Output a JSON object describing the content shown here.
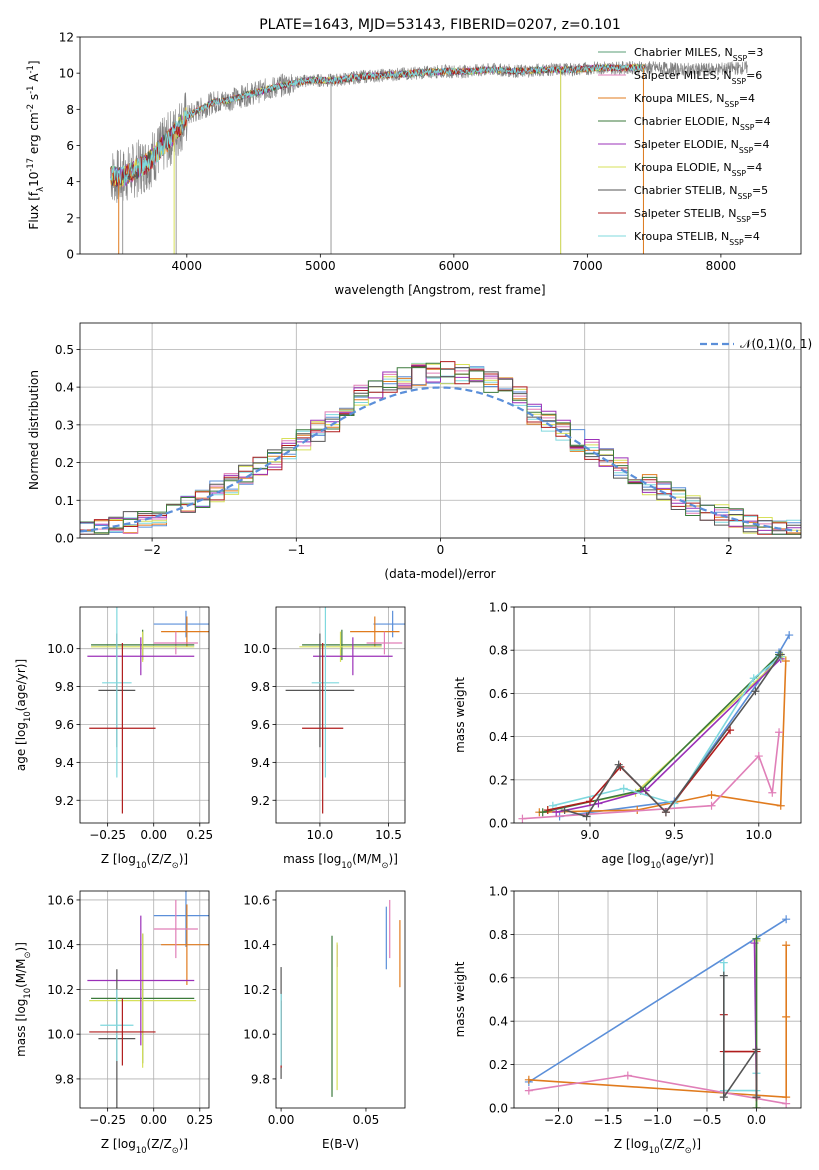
{
  "chart_data": [
    {
      "type": "line",
      "title": "PLATE=1643, MJD=53143, FIBERID=0207, z=0.101",
      "xlabel": "wavelength [Angstrom, rest frame]",
      "ylabel": "Flux [f$_\\lambda$10$^{-17}$ erg cm$^{-2}$ s$^{-1}$ A$^{-1}$]",
      "xlim": [
        3200,
        8600
      ],
      "ylim": [
        0,
        12
      ],
      "xticks": [
        "4000",
        "5000",
        "6000",
        "7000",
        "8000"
      ],
      "yticks": [
        "0",
        "2",
        "4",
        "6",
        "8",
        "10",
        "12"
      ],
      "legend_position": "lower-right",
      "observed_spectrum_color": "#808080",
      "spectrum_shape": {
        "x": [
          3430,
          3500,
          3600,
          3700,
          3800,
          3900,
          4000,
          4100,
          4200,
          4300,
          4500,
          4700,
          4900,
          5100,
          5300,
          5500,
          5700,
          5900,
          6100,
          6300,
          6500,
          6700,
          6900,
          7100,
          7300,
          7500,
          7700,
          7900,
          8200
        ],
        "y": [
          4.4,
          4.2,
          4.6,
          5.0,
          5.8,
          6.6,
          7.6,
          8.0,
          8.4,
          8.5,
          8.9,
          9.3,
          9.6,
          9.6,
          9.8,
          9.9,
          10.0,
          10.1,
          10.1,
          10.2,
          10.1,
          10.2,
          10.2,
          10.3,
          10.3,
          10.3,
          10.2,
          10.2,
          10.3
        ]
      },
      "series": [
        {
          "name": "Chabrier MILES, N$_{SSP}$=3",
          "color": "#5a9e75"
        },
        {
          "name": "Salpeter MILES, N$_{SSP}$=6",
          "color": "#e07fb8"
        },
        {
          "name": "Kroupa MILES, N$_{SSP}$=4",
          "color": "#e07b1e"
        },
        {
          "name": "Chabrier ELODIE, N$_{SSP}$=4",
          "color": "#3b7a3b"
        },
        {
          "name": "Salpeter ELODIE, N$_{SSP}$=4",
          "color": "#9b30b8"
        },
        {
          "name": "Kroupa ELODIE, N$_{SSP}$=4",
          "color": "#d7e05a"
        },
        {
          "name": "Chabrier STELIB, N$_{SSP}$=5",
          "color": "#555555"
        },
        {
          "name": "Salpeter STELIB, N$_{SSP}$=5",
          "color": "#b01c1c"
        },
        {
          "name": "Kroupa STELIB, N$_{SSP}$=4",
          "color": "#7fd8de"
        }
      ]
    },
    {
      "type": "line",
      "xlabel": "(data-model)/error",
      "ylabel": "Normed distribution",
      "xlim": [
        -2.5,
        2.5
      ],
      "ylim": [
        0,
        0.57
      ],
      "xticks": [
        "−2",
        "−1",
        "0",
        "1",
        "2"
      ],
      "yticks": [
        "0.0",
        "0.1",
        "0.2",
        "0.3",
        "0.4",
        "0.5"
      ],
      "grid": true,
      "legend_position": "top-right",
      "gaussian": {
        "name": "$\\mathcal{N}(0,1)$",
        "color": "#5b8fd9"
      },
      "histogram_bin_width": 0.1,
      "histogram_colors": [
        "#5b8fd9",
        "#e07b1e",
        "#7fd8de",
        "#d7e05a",
        "#e07fb8",
        "#9b30b8",
        "#b01c1c",
        "#555555",
        "#3b7a3b"
      ]
    },
    {
      "type": "scatter",
      "xlabel": "Z [log$_{10}$(Z/Z$_\\odot$)]",
      "ylabel": "age  [log$_{10}$(age/yr)]",
      "xlim": [
        -0.4,
        0.3
      ],
      "ylim": [
        9.08,
        10.22
      ],
      "xticks": [
        "−0.25",
        "0.00",
        "0.25"
      ],
      "yticks": [
        "9.2",
        "9.4",
        "9.6",
        "9.8",
        "10.0"
      ],
      "grid": true,
      "series": [
        {
          "color": "#5b8fd9",
          "x": 0.175,
          "xerr": 0.175,
          "y": 10.13,
          "yerr": 0.07
        },
        {
          "color": "#e07b1e",
          "x": 0.18,
          "xerr": 0.14,
          "y": 10.09,
          "yerr": 0.08
        },
        {
          "color": "#e07fb8",
          "x": 0.12,
          "xerr": 0.12,
          "y": 10.03,
          "yerr": 0.06
        },
        {
          "color": "#3b7a3b",
          "x": -0.06,
          "xerr": 0.28,
          "y": 10.02,
          "yerr": 0.08
        },
        {
          "color": "#d7e05a",
          "x": -0.06,
          "xerr": 0.28,
          "y": 10.01,
          "yerr": 0.08
        },
        {
          "color": "#9b30b8",
          "x": -0.07,
          "xerr": 0.29,
          "y": 9.96,
          "yerr": 0.1
        },
        {
          "color": "#555555",
          "x": -0.2,
          "xerr": 0.1,
          "y": 9.78,
          "yerr": 0.3
        },
        {
          "color": "#7fd8de",
          "x": -0.2,
          "xerr": 0.08,
          "y": 9.82,
          "yerr": 0.5
        },
        {
          "color": "#b01c1c",
          "x": -0.17,
          "xerr": 0.18,
          "y": 9.58,
          "yerr": 0.45
        }
      ]
    },
    {
      "type": "scatter",
      "xlabel": "mass [log$_{10}$(M/M$_\\odot$)]",
      "xlim": [
        9.68,
        10.62
      ],
      "ylim": [
        9.08,
        10.22
      ],
      "xticks": [
        "10.0",
        "10.5"
      ],
      "yticks": [
        "9.2",
        "9.4",
        "9.6",
        "9.8",
        "10.0"
      ],
      "grid": true,
      "series": [
        {
          "color": "#5b8fd9",
          "x": 10.53,
          "xerr": 0.14,
          "y": 10.13,
          "yerr": 0.07
        },
        {
          "color": "#e07b1e",
          "x": 10.4,
          "xerr": 0.18,
          "y": 10.09,
          "yerr": 0.08
        },
        {
          "color": "#e07fb8",
          "x": 10.47,
          "xerr": 0.13,
          "y": 10.03,
          "yerr": 0.06
        },
        {
          "color": "#3b7a3b",
          "x": 10.16,
          "xerr": 0.29,
          "y": 10.02,
          "yerr": 0.08
        },
        {
          "color": "#d7e05a",
          "x": 10.15,
          "xerr": 0.3,
          "y": 10.01,
          "yerr": 0.08
        },
        {
          "color": "#9b30b8",
          "x": 10.24,
          "xerr": 0.29,
          "y": 9.96,
          "yerr": 0.1
        },
        {
          "color": "#555555",
          "x": 10.0,
          "xerr": 0.25,
          "y": 9.78,
          "yerr": 0.3
        },
        {
          "color": "#7fd8de",
          "x": 10.04,
          "xerr": 0.1,
          "y": 9.82,
          "yerr": 0.5
        },
        {
          "color": "#b01c1c",
          "x": 10.02,
          "xerr": 0.15,
          "y": 9.58,
          "yerr": 0.45
        }
      ]
    },
    {
      "type": "line",
      "xlabel": "age  [log$_{10}$(age/yr)]",
      "ylabel": "mass weight",
      "xlim": [
        8.55,
        10.25
      ],
      "ylim": [
        0,
        1
      ],
      "xticks": [
        "9.0",
        "9.5",
        "10.0"
      ],
      "yticks": [
        "0.0",
        "0.2",
        "0.4",
        "0.6",
        "0.8",
        "1.0"
      ],
      "grid": true,
      "series": [
        {
          "color": "#5b8fd9",
          "x": [
            8.82,
            9.5,
            10.12,
            10.18
          ],
          "y": [
            0.03,
            0.1,
            0.79,
            0.87
          ]
        },
        {
          "color": "#e07b1e",
          "x": [
            8.7,
            9.28,
            9.72,
            10.13,
            10.16
          ],
          "y": [
            0.05,
            0.06,
            0.13,
            0.08,
            0.75
          ]
        },
        {
          "color": "#e07fb8",
          "x": [
            8.6,
            9.72,
            10.0,
            10.08,
            10.12
          ],
          "y": [
            0.02,
            0.08,
            0.31,
            0.14,
            0.42
          ]
        },
        {
          "color": "#d7e05a",
          "x": [
            8.75,
            9.27,
            10.14
          ],
          "y": [
            0.06,
            0.14,
            0.77
          ]
        },
        {
          "color": "#3b7a3b",
          "x": [
            8.72,
            9.3,
            10.12
          ],
          "y": [
            0.05,
            0.15,
            0.78
          ]
        },
        {
          "color": "#9b30b8",
          "x": [
            8.8,
            9.05,
            9.33,
            10.13
          ],
          "y": [
            0.05,
            0.09,
            0.15,
            0.76
          ]
        },
        {
          "color": "#7fd8de",
          "x": [
            8.78,
            9.2,
            9.5,
            9.97,
            10.13
          ],
          "y": [
            0.08,
            0.16,
            0.09,
            0.67,
            0.77
          ]
        },
        {
          "color": "#b01c1c",
          "x": [
            8.75,
            9.0,
            9.18,
            9.45,
            9.83
          ],
          "y": [
            0.06,
            0.1,
            0.26,
            0.05,
            0.43
          ]
        },
        {
          "color": "#555555",
          "x": [
            8.85,
            8.98,
            9.17,
            9.45,
            9.98,
            10.13
          ],
          "y": [
            0.06,
            0.03,
            0.27,
            0.05,
            0.61,
            0.78
          ]
        }
      ]
    },
    {
      "type": "scatter",
      "xlabel": "Z [log$_{10}$(Z/Z$_\\odot$)]",
      "ylabel": "mass [log$_{10}$(M/M$_\\odot$)]",
      "xlim": [
        -0.4,
        0.3
      ],
      "ylim": [
        9.67,
        10.64
      ],
      "xticks": [
        "−0.25",
        "0.00",
        "0.25"
      ],
      "yticks": [
        "9.8",
        "10.0",
        "10.2",
        "10.4",
        "10.6"
      ],
      "grid": true,
      "series": [
        {
          "color": "#5b8fd9",
          "x": 0.175,
          "xerr": 0.175,
          "y": 10.53,
          "yerr": 0.14
        },
        {
          "color": "#e07b1e",
          "x": 0.18,
          "xerr": 0.14,
          "y": 10.4,
          "yerr": 0.18
        },
        {
          "color": "#e07fb8",
          "x": 0.12,
          "xerr": 0.12,
          "y": 10.47,
          "yerr": 0.13
        },
        {
          "color": "#3b7a3b",
          "x": -0.06,
          "xerr": 0.28,
          "y": 10.16,
          "yerr": 0.29
        },
        {
          "color": "#d7e05a",
          "x": -0.06,
          "xerr": 0.29,
          "y": 10.15,
          "yerr": 0.3
        },
        {
          "color": "#9b30b8",
          "x": -0.07,
          "xerr": 0.29,
          "y": 10.24,
          "yerr": 0.29
        },
        {
          "color": "#555555",
          "x": -0.2,
          "xerr": 0.1,
          "y": 9.98,
          "yerr": 0.31
        },
        {
          "color": "#7fd8de",
          "x": -0.2,
          "xerr": 0.09,
          "y": 10.04,
          "yerr": 0.16
        },
        {
          "color": "#b01c1c",
          "x": -0.17,
          "xerr": 0.18,
          "y": 10.01,
          "yerr": 0.15
        }
      ]
    },
    {
      "type": "scatter",
      "xlabel": "E(B-V)",
      "xlim": [
        -0.003,
        0.073
      ],
      "ylim": [
        9.67,
        10.64
      ],
      "xticks": [
        "0.00",
        "0.05"
      ],
      "yticks": [
        "9.8",
        "10.0",
        "10.2",
        "10.4",
        "10.6"
      ],
      "grid": false,
      "series": [
        {
          "color": "#555555",
          "x": 0.0,
          "y": 10.05,
          "yerr": 0.25
        },
        {
          "color": "#b01c1c",
          "x": 0.0,
          "y": 10.0,
          "yerr": 0.15
        },
        {
          "color": "#7fd8de",
          "x": 0.0,
          "y": 10.02,
          "yerr": 0.16
        },
        {
          "color": "#3b7a3b",
          "x": 0.03,
          "y": 10.08,
          "yerr": 0.36
        },
        {
          "color": "#9b30b8",
          "x": 0.033,
          "y": 10.35,
          "yerr": 0.05
        },
        {
          "color": "#d7e05a",
          "x": 0.033,
          "y": 10.08,
          "yerr": 0.33
        },
        {
          "color": "#5b8fd9",
          "x": 0.062,
          "y": 10.43,
          "yerr": 0.14
        },
        {
          "color": "#e07fb8",
          "x": 0.064,
          "y": 10.47,
          "yerr": 0.13
        },
        {
          "color": "#e07b1e",
          "x": 0.07,
          "y": 10.36,
          "yerr": 0.15
        }
      ]
    },
    {
      "type": "line",
      "xlabel": "Z [log$_{10}$(Z/Z$_\\odot$)]",
      "ylabel": "mass weight",
      "xlim": [
        -2.45,
        0.45
      ],
      "ylim": [
        0,
        1
      ],
      "xticks": [
        "−2.0",
        "−1.5",
        "−1.0",
        "−0.5",
        "0.0"
      ],
      "yticks": [
        "0.0",
        "0.2",
        "0.4",
        "0.6",
        "0.8",
        "1.0"
      ],
      "grid": true,
      "series": [
        {
          "color": "#5b8fd9",
          "x": [
            -2.3,
            0.3
          ],
          "y": [
            0.12,
            0.87
          ]
        },
        {
          "color": "#e07b1e",
          "x": [
            -2.3,
            0.3,
            0.3,
            0.3
          ],
          "y": [
            0.13,
            0.05,
            0.42,
            0.75
          ]
        },
        {
          "color": "#e07fb8",
          "x": [
            -2.3,
            -1.3,
            0.3
          ],
          "y": [
            0.08,
            0.15,
            0.02
          ]
        },
        {
          "color": "#7fd8de",
          "x": [
            -0.33,
            -0.33,
            0.0,
            0.0
          ],
          "y": [
            0.67,
            0.08,
            0.08,
            0.16
          ]
        },
        {
          "color": "#d7e05a",
          "x": [
            0.0,
            0.0
          ],
          "y": [
            0.0,
            0.77
          ]
        },
        {
          "color": "#9b30b8",
          "x": [
            -0.02,
            0.0
          ],
          "y": [
            0.76,
            0.05
          ]
        },
        {
          "color": "#3b7a3b",
          "x": [
            0.0,
            0.0
          ],
          "y": [
            0.78,
            0.0
          ]
        },
        {
          "color": "#b01c1c",
          "x": [
            -0.33,
            -0.33,
            0.0,
            0.0
          ],
          "y": [
            0.43,
            0.26,
            0.26,
            0.05
          ]
        },
        {
          "color": "#555555",
          "x": [
            -0.33,
            -0.33,
            0.0,
            0.0
          ],
          "y": [
            0.61,
            0.05,
            0.27,
            0.05
          ]
        }
      ]
    }
  ]
}
